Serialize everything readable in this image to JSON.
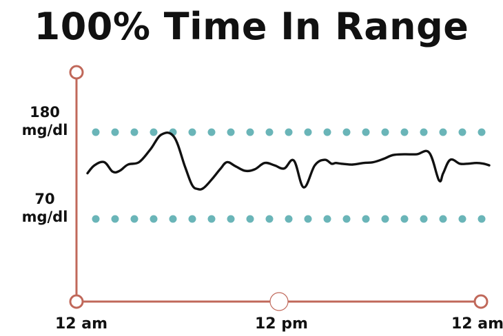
{
  "chart_data": {
    "type": "line",
    "title": "100% Time In Range",
    "y_ticks": [
      {
        "value": 180,
        "line1": "180",
        "line2": "mg/dl"
      },
      {
        "value": 70,
        "line1": "70",
        "line2": "mg/dl"
      }
    ],
    "x_ticks": [
      "12 am",
      "12 pm",
      "12 am"
    ],
    "x_range_hours": [
      0,
      24
    ],
    "ylim": [
      0,
      240
    ],
    "target_range": [
      70,
      180
    ],
    "series": [
      {
        "x": [
          0.0,
          0.42,
          1.0,
          1.5,
          1.92,
          2.42,
          3.08,
          3.75,
          4.42,
          5.17,
          5.83,
          6.25,
          6.58,
          6.92,
          7.42,
          7.92,
          8.33,
          8.83,
          9.42,
          10.0,
          10.58,
          11.17,
          11.75,
          12.33,
          12.92,
          13.58,
          14.17,
          14.58,
          14.83,
          15.17,
          15.83,
          16.5,
          17.08,
          17.67,
          18.25,
          18.92,
          19.67,
          20.42,
          21.0,
          21.25,
          21.67,
          22.25,
          22.67,
          23.25,
          23.67,
          24.0
        ],
        "y": [
          128,
          138,
          142,
          130,
          131,
          139,
          142,
          158,
          177,
          174,
          136,
          113,
          108,
          109,
          120,
          133,
          142,
          137,
          131,
          133,
          141,
          138,
          134,
          144,
          110,
          138,
          145,
          140,
          141,
          140,
          139,
          141,
          142,
          146,
          151,
          152,
          152,
          154,
          119,
          128,
          145,
          140,
          140,
          141,
          140,
          138
        ]
      }
    ],
    "colors": {
      "axis": "#c0685a",
      "dots": "#6ab5b8",
      "line": "#111111",
      "title": "#111111"
    }
  }
}
